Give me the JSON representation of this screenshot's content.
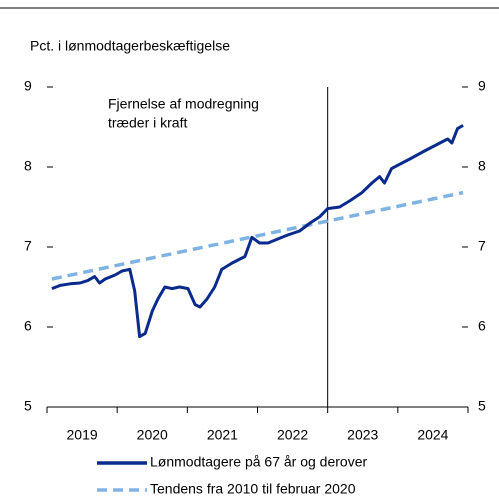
{
  "chart_data": {
    "type": "line",
    "subtitle": "Pct. i lønmodtagerbeskæftigelse",
    "annotation": [
      "Fjernelse af modregning",
      "træder i kraft"
    ],
    "annotation_x": 2023.0,
    "x_labels": [
      "2019",
      "2020",
      "2021",
      "2022",
      "2023",
      "2024"
    ],
    "xticks": [
      2019,
      2020,
      2021,
      2022,
      2023,
      2024,
      2025
    ],
    "xlim": [
      2019,
      2025
    ],
    "ylim": [
      5,
      9
    ],
    "yticks": [
      5,
      6,
      7,
      8,
      9
    ],
    "legend": "bottom",
    "series": [
      {
        "name": "Lønmodtagere på 67 år og derover",
        "color": "#0a2a8c",
        "dash": false,
        "x": [
          2019.07,
          2019.19,
          2019.33,
          2019.47,
          2019.58,
          2019.68,
          2019.75,
          2019.83,
          2019.97,
          2020.07,
          2020.18,
          2020.25,
          2020.32,
          2020.4,
          2020.5,
          2020.58,
          2020.68,
          2020.78,
          2020.89,
          2021.01,
          2021.11,
          2021.18,
          2021.28,
          2021.39,
          2021.49,
          2021.64,
          2021.75,
          2021.82,
          2021.92,
          2022.03,
          2022.15,
          2022.29,
          2022.43,
          2022.6,
          2022.75,
          2022.89,
          2023.0,
          2023.17,
          2023.32,
          2023.49,
          2023.63,
          2023.74,
          2023.81,
          2023.91,
          2024.17,
          2024.38,
          2024.6,
          2024.71,
          2024.77,
          2024.85,
          2024.93
        ],
        "values": [
          6.48,
          6.52,
          6.54,
          6.55,
          6.58,
          6.63,
          6.55,
          6.6,
          6.65,
          6.7,
          6.72,
          6.45,
          5.88,
          5.92,
          6.2,
          6.35,
          6.5,
          6.48,
          6.5,
          6.48,
          6.28,
          6.25,
          6.35,
          6.5,
          6.72,
          6.8,
          6.85,
          6.88,
          7.12,
          7.05,
          7.05,
          7.1,
          7.15,
          7.2,
          7.3,
          7.38,
          7.48,
          7.5,
          7.58,
          7.68,
          7.8,
          7.88,
          7.8,
          7.98,
          8.1,
          8.2,
          8.3,
          8.35,
          8.3,
          8.48,
          8.52
        ]
      },
      {
        "name": "Tendens fra 2010 til februar 2020",
        "color": "#7fb3e3",
        "dash": true,
        "x": [
          2019.07,
          2024.93
        ],
        "values": [
          6.6,
          7.68
        ]
      }
    ]
  }
}
